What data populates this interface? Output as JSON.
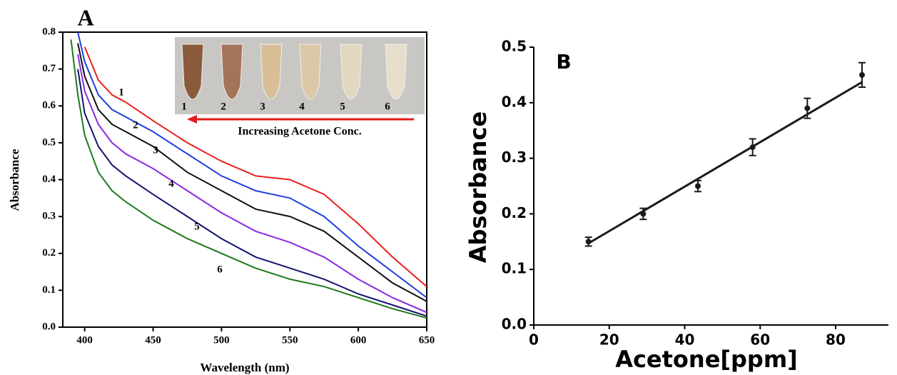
{
  "chart_data": [
    {
      "type": "line",
      "title": "A",
      "x_label": "Wavelength (nm)",
      "y_label": "Absorbance",
      "x": [
        390,
        395,
        400,
        410,
        420,
        430,
        450,
        475,
        500,
        525,
        550,
        575,
        600,
        625,
        650
      ],
      "series": [
        {
          "name": "1",
          "color": "#e8211e",
          "values": [
            null,
            null,
            0.76,
            0.67,
            0.63,
            0.61,
            0.56,
            0.5,
            0.45,
            0.41,
            0.4,
            0.36,
            0.28,
            0.19,
            0.11
          ]
        },
        {
          "name": "2",
          "color": "#1f3fe0",
          "values": [
            null,
            0.8,
            0.72,
            0.63,
            0.59,
            0.57,
            0.53,
            0.47,
            0.41,
            0.37,
            0.35,
            0.3,
            0.22,
            0.15,
            0.08
          ]
        },
        {
          "name": "3",
          "color": "#111111",
          "values": [
            null,
            0.77,
            0.68,
            0.59,
            0.55,
            0.53,
            0.49,
            0.42,
            0.37,
            0.32,
            0.3,
            0.26,
            0.19,
            0.12,
            0.07
          ]
        },
        {
          "name": "4",
          "color": "#8a2be2",
          "values": [
            null,
            0.74,
            0.64,
            0.55,
            0.5,
            0.47,
            0.43,
            0.37,
            0.31,
            0.26,
            0.23,
            0.19,
            0.13,
            0.08,
            0.04
          ]
        },
        {
          "name": "5",
          "color": "#14146e",
          "values": [
            null,
            0.7,
            0.58,
            0.49,
            0.44,
            0.41,
            0.36,
            0.3,
            0.24,
            0.19,
            0.16,
            0.13,
            0.09,
            0.06,
            0.03
          ]
        },
        {
          "name": "6",
          "color": "#1d7a1d",
          "values": [
            0.78,
            0.63,
            0.52,
            0.42,
            0.37,
            0.34,
            0.29,
            0.24,
            0.2,
            0.16,
            0.13,
            0.11,
            0.08,
            0.05,
            0.025
          ]
        }
      ],
      "xlim": [
        384,
        650
      ],
      "xticks": [
        400,
        450,
        500,
        550,
        600,
        650
      ],
      "ylim": [
        0,
        0.8
      ],
      "yticks": [
        {
          "value": 0,
          "label": "0.0"
        },
        0.1,
        0.2,
        0.3,
        0.4,
        0.5,
        0.6,
        0.7,
        0.8
      ],
      "inset_caption": "Increasing Acetone Conc."
    },
    {
      "type": "scatter",
      "title": "B",
      "x_label": "Acetone[ppm]",
      "y_label": "Absorbance",
      "x": [
        14.5,
        29,
        43.5,
        58,
        72.5,
        87
      ],
      "values": [
        0.15,
        0.2,
        0.25,
        0.32,
        0.39,
        0.45
      ],
      "errors": [
        0.008,
        0.01,
        0.01,
        0.015,
        0.018,
        0.022
      ],
      "color": "#1a1a1a",
      "fit": {
        "x": [
          14.5,
          87
        ],
        "values": [
          0.147,
          0.437
        ]
      },
      "xlim": [
        0,
        94
      ],
      "xticks": [
        0,
        20,
        40,
        60,
        80
      ],
      "ylim": [
        0,
        0.5
      ],
      "yticks": [
        {
          "value": 0,
          "label": "0.0"
        },
        0.1,
        0.2,
        0.3,
        0.4,
        0.5
      ]
    }
  ]
}
